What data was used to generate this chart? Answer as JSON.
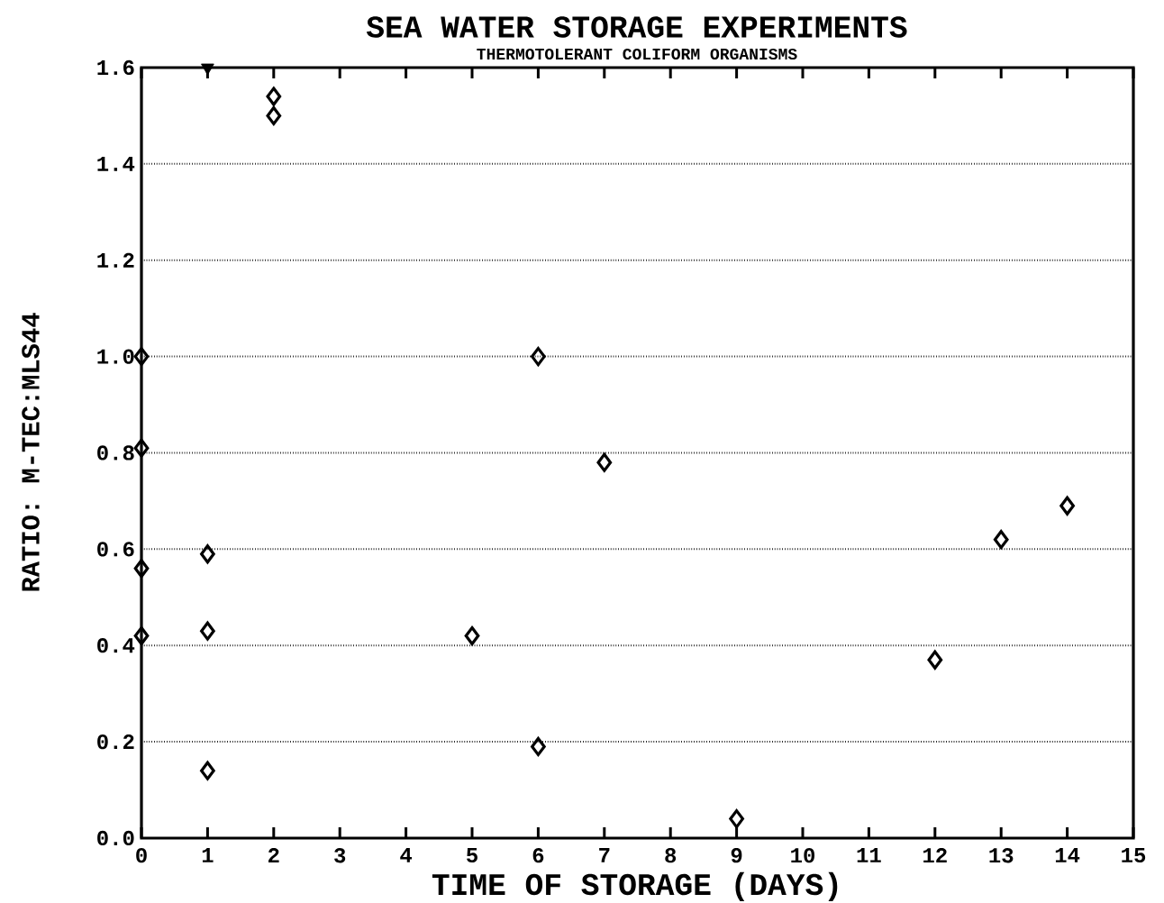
{
  "chart_data": {
    "type": "scatter",
    "title": "SEA WATER STORAGE EXPERIMENTS",
    "subtitle": "THERMOTOLERANT COLIFORM ORGANISMS",
    "xlabel": "TIME OF STORAGE (DAYS)",
    "ylabel": "RATIO:  M-TEC:MLS44",
    "series": [
      {
        "color": "#000000",
        "marker": "diamond",
        "x": [
          0,
          0,
          0,
          0,
          1,
          1,
          1,
          2,
          2,
          5,
          6,
          6,
          7,
          9,
          12,
          13,
          14
        ],
        "values": [
          1.0,
          0.81,
          0.56,
          0.42,
          0.59,
          0.43,
          0.14,
          1.54,
          1.5,
          0.42,
          1.0,
          0.19,
          0.78,
          0.04,
          0.37,
          0.62,
          0.69
        ]
      },
      {
        "color": "#000000",
        "marker": "triangle",
        "x": [
          1
        ],
        "values": [
          1.6
        ]
      }
    ],
    "xlim": [
      0,
      15
    ],
    "ylim": [
      0,
      1.6
    ],
    "xticks": [
      0,
      1,
      2,
      3,
      4,
      5,
      6,
      7,
      8,
      9,
      10,
      11,
      12,
      13,
      14,
      15
    ],
    "yticks": [
      {
        "value": 0,
        "label": "0.0"
      },
      0.2,
      0.4,
      0.6,
      0.8,
      {
        "value": 1,
        "label": "1.0"
      },
      1.2,
      1.4,
      1.6
    ],
    "grid": "y",
    "line_style": "dotted"
  }
}
